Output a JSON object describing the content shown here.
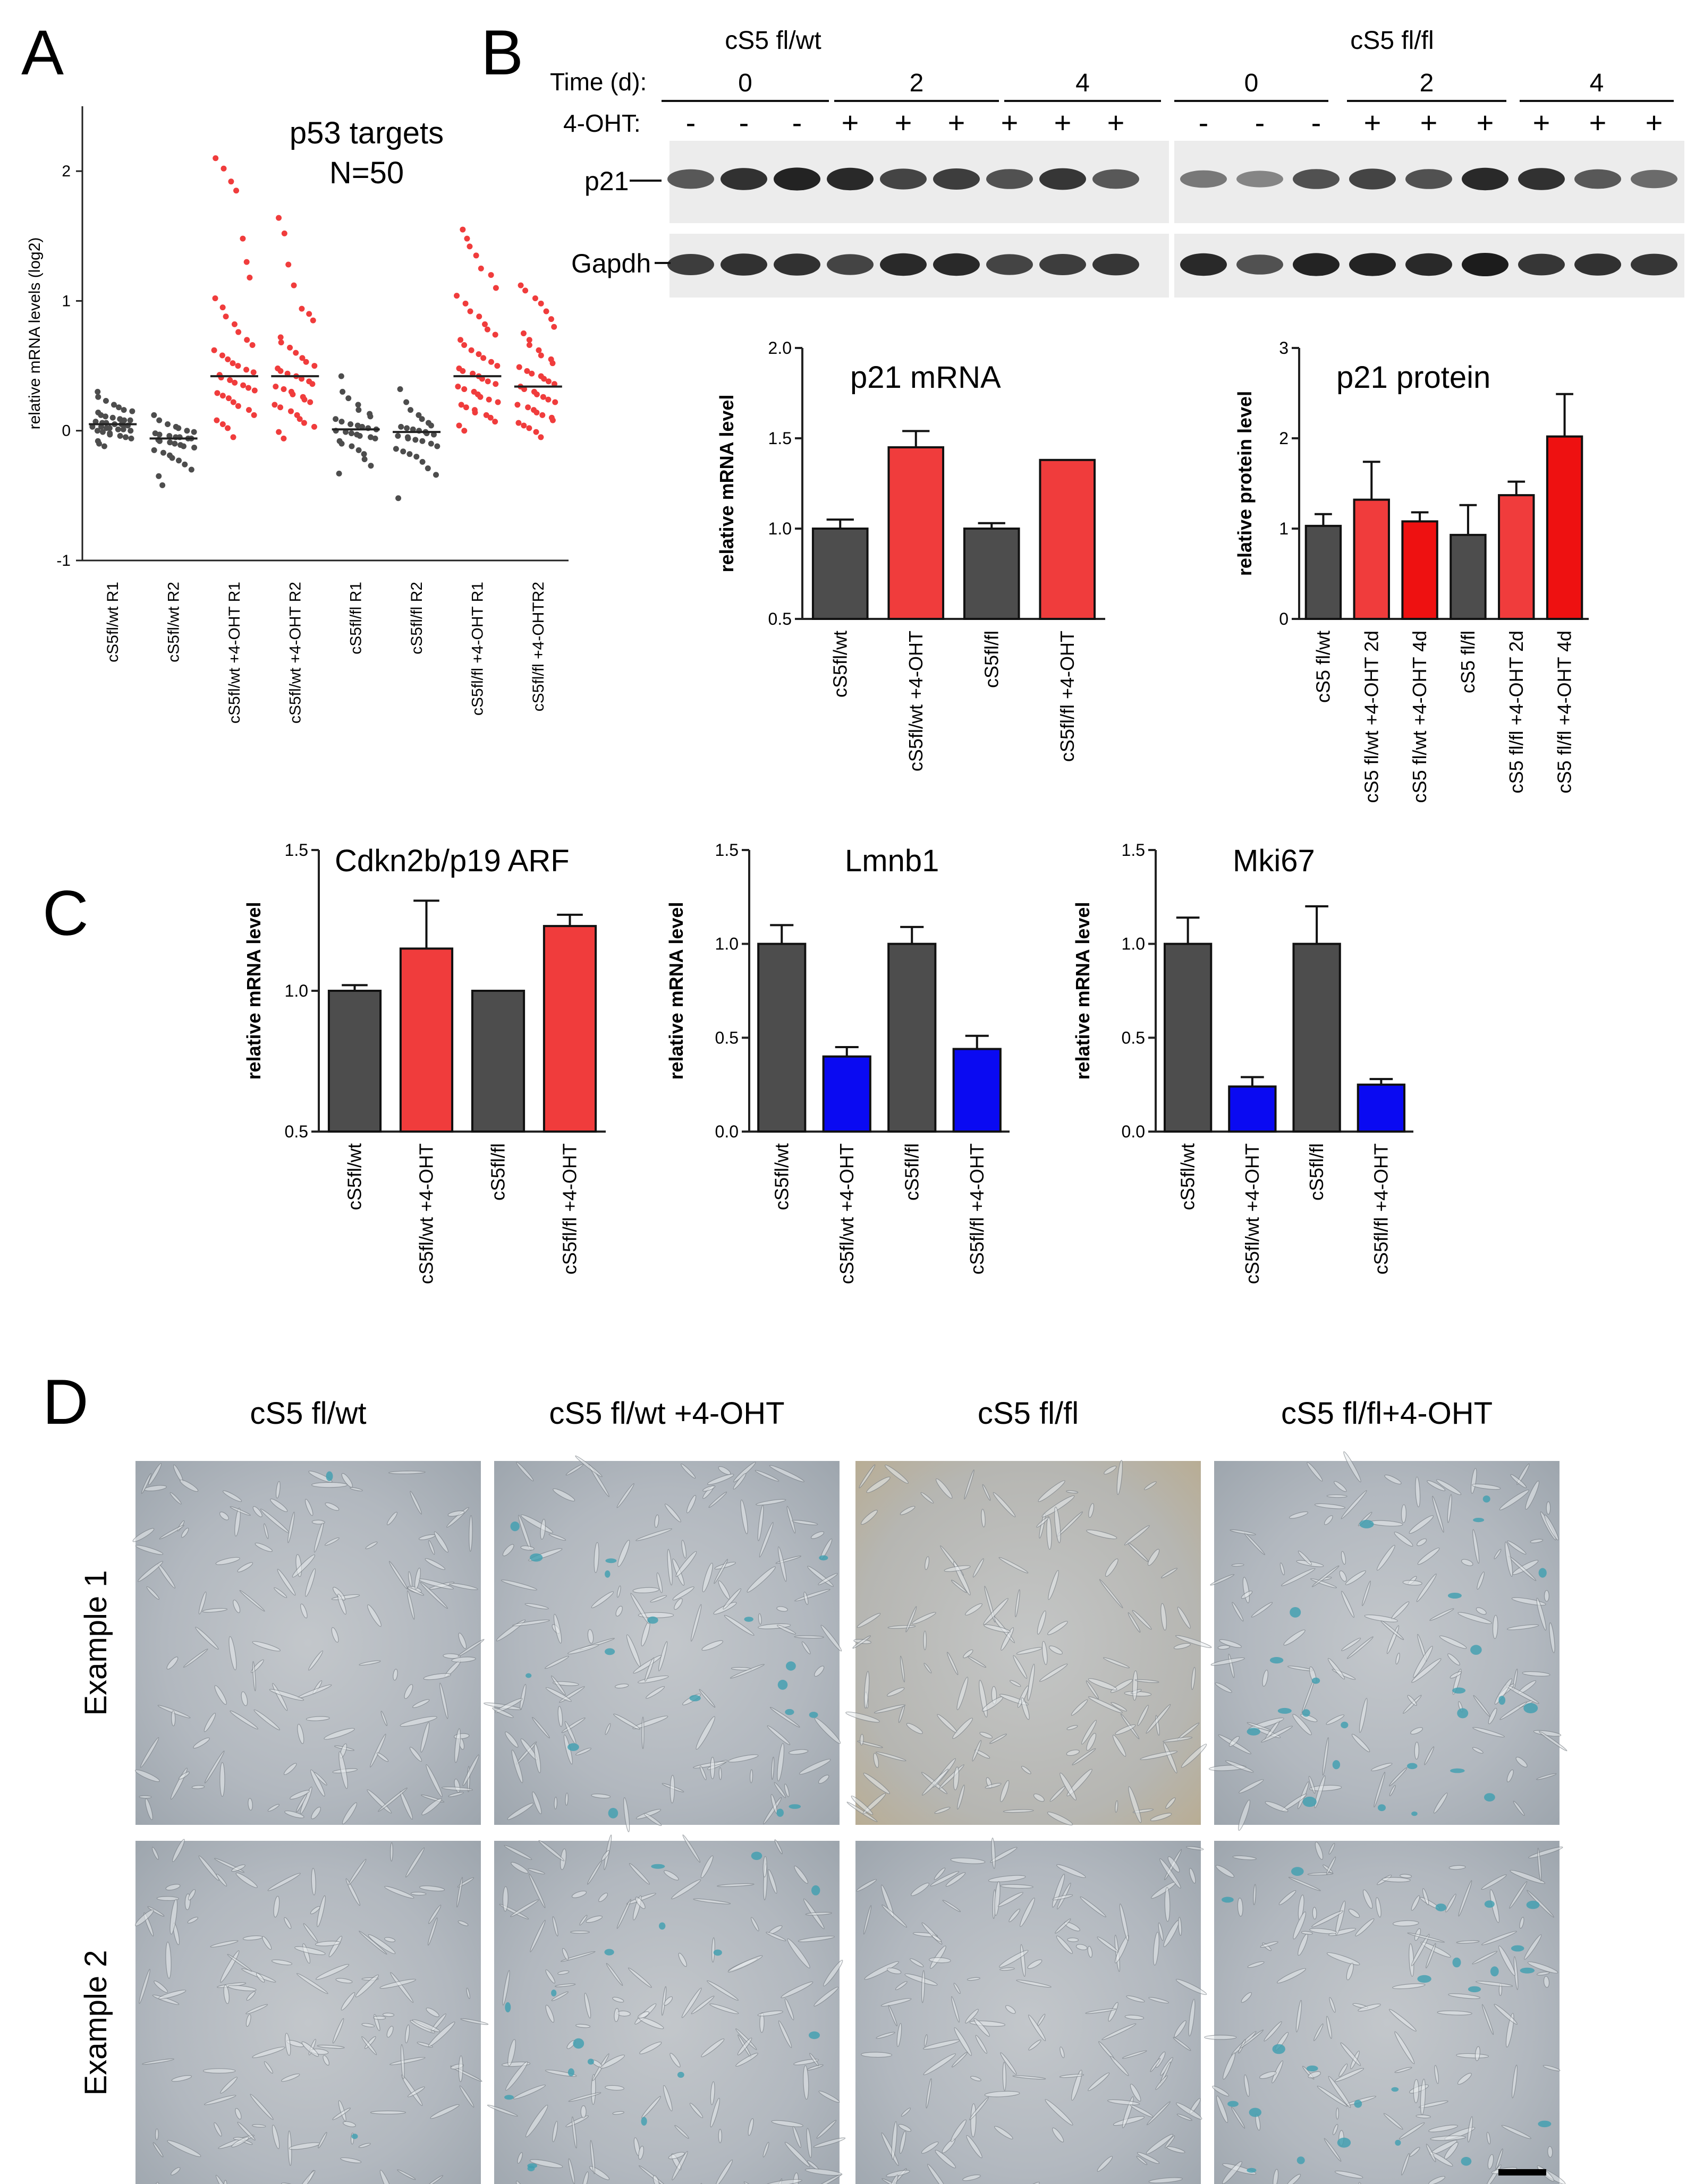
{
  "panels": {
    "A": {
      "letter": "A"
    },
    "B": {
      "letter": "B"
    },
    "C": {
      "letter": "C"
    },
    "D": {
      "letter": "D"
    }
  },
  "colors": {
    "gray": "#4d4d4d",
    "red": "#f03c3c",
    "red_strong": "#ee1111",
    "blue": "#0a0af2",
    "stain_blue": "#3f9fb0"
  },
  "western_blot": {
    "group_left": "cS5 fl/wt",
    "group_right": "cS5 fl/fl",
    "time_label": "Time (d):",
    "treat_label": "4-OHT:",
    "time_points": [
      "0",
      "2",
      "4"
    ],
    "lanes_left": [
      "-",
      "-",
      "-",
      "+",
      "+",
      "+",
      "+",
      "+",
      "+"
    ],
    "lanes_right": [
      "-",
      "-",
      "-",
      "+",
      "+",
      "+",
      "+",
      "+",
      "+"
    ],
    "bands": [
      "p21",
      "Gapdh"
    ]
  },
  "chart_data": [
    {
      "id": "A",
      "type": "scatter",
      "title": "p53 targets",
      "subtitle": "N=50",
      "ylabel": "relative mRNA levels (log2)",
      "ylim": [
        -1,
        2.5
      ],
      "yticks": [
        "-1",
        "0",
        "1",
        "2"
      ],
      "categories": [
        "cS5fl/wt R1",
        "cS5fl/wt R2",
        "cS5fl/wt +4-OHT R1",
        "cS5fl/wt +4-OHT R2",
        "cS5fl/fl R1",
        "cS5fl/fl R2",
        "cS5fl/fl +4-OHT R1",
        "cS5fl/fl +4-OHTR2"
      ],
      "medians": [
        0.05,
        -0.06,
        0.42,
        0.42,
        0.01,
        -0.01,
        0.42,
        0.34
      ],
      "colors": [
        "#4d4d4d",
        "#4d4d4d",
        "#f03c3c",
        "#f03c3c",
        "#4d4d4d",
        "#4d4d4d",
        "#f03c3c",
        "#f03c3c"
      ],
      "series": [
        {
          "values": [
            0.3,
            0.26,
            0.23,
            0.2,
            0.18,
            0.16,
            0.15,
            0.14,
            0.12,
            0.11,
            0.1,
            0.09,
            0.08,
            0.08,
            0.07,
            0.06,
            0.06,
            0.05,
            0.05,
            0.04,
            0.04,
            0.03,
            0.03,
            0.02,
            0.02,
            0.01,
            0.01,
            0.0,
            0.0,
            -0.01,
            -0.02,
            -0.03,
            -0.04,
            -0.05,
            -0.06,
            -0.08,
            -0.1,
            -0.12
          ]
        },
        {
          "values": [
            0.12,
            0.08,
            0.05,
            0.03,
            0.02,
            0.0,
            -0.01,
            -0.02,
            -0.03,
            -0.04,
            -0.05,
            -0.05,
            -0.06,
            -0.06,
            -0.07,
            -0.08,
            -0.09,
            -0.1,
            -0.11,
            -0.12,
            -0.13,
            -0.15,
            -0.17,
            -0.19,
            -0.21,
            -0.23,
            -0.26,
            -0.3,
            -0.35,
            -0.42
          ]
        },
        {
          "values": [
            2.1,
            2.02,
            1.92,
            1.85,
            1.48,
            1.3,
            1.18,
            1.02,
            0.95,
            0.88,
            0.82,
            0.76,
            0.7,
            0.66,
            0.62,
            0.58,
            0.55,
            0.52,
            0.5,
            0.47,
            0.45,
            0.43,
            0.41,
            0.39,
            0.37,
            0.35,
            0.33,
            0.31,
            0.29,
            0.27,
            0.25,
            0.22,
            0.19,
            0.16,
            0.12,
            0.08,
            0.05,
            0.02,
            -0.05
          ]
        },
        {
          "values": [
            1.64,
            1.52,
            1.28,
            1.12,
            0.94,
            0.9,
            0.85,
            0.72,
            0.68,
            0.64,
            0.6,
            0.56,
            0.53,
            0.5,
            0.48,
            0.46,
            0.44,
            0.42,
            0.4,
            0.38,
            0.36,
            0.34,
            0.32,
            0.3,
            0.28,
            0.26,
            0.24,
            0.22,
            0.2,
            0.18,
            0.15,
            0.12,
            0.09,
            0.06,
            0.03,
            -0.01,
            -0.06
          ]
        },
        {
          "values": [
            0.42,
            0.3,
            0.25,
            0.2,
            0.16,
            0.13,
            0.11,
            0.09,
            0.07,
            0.05,
            0.04,
            0.03,
            0.02,
            0.01,
            0.0,
            -0.01,
            -0.02,
            -0.03,
            -0.04,
            -0.05,
            -0.06,
            -0.08,
            -0.1,
            -0.12,
            -0.15,
            -0.18,
            -0.22,
            -0.27,
            -0.33
          ]
        },
        {
          "values": [
            0.32,
            0.22,
            0.16,
            0.12,
            0.09,
            0.06,
            0.04,
            0.03,
            0.02,
            0.01,
            0.0,
            -0.01,
            -0.02,
            -0.03,
            -0.04,
            -0.05,
            -0.06,
            -0.07,
            -0.08,
            -0.1,
            -0.12,
            -0.14,
            -0.16,
            -0.18,
            -0.2,
            -0.24,
            -0.29,
            -0.34,
            -0.52
          ]
        },
        {
          "values": [
            1.55,
            1.48,
            1.42,
            1.35,
            1.25,
            1.2,
            1.1,
            1.04,
            0.98,
            0.92,
            0.88,
            0.82,
            0.78,
            0.74,
            0.7,
            0.66,
            0.62,
            0.59,
            0.56,
            0.53,
            0.5,
            0.48,
            0.46,
            0.44,
            0.42,
            0.4,
            0.38,
            0.36,
            0.34,
            0.32,
            0.3,
            0.28,
            0.26,
            0.24,
            0.22,
            0.2,
            0.18,
            0.16,
            0.14,
            0.12,
            0.1,
            0.07,
            0.04,
            0.0
          ]
        },
        {
          "values": [
            1.12,
            1.08,
            1.02,
            0.98,
            0.92,
            0.86,
            0.8,
            0.75,
            0.7,
            0.66,
            0.62,
            0.58,
            0.55,
            0.52,
            0.49,
            0.46,
            0.44,
            0.42,
            0.4,
            0.38,
            0.36,
            0.34,
            0.32,
            0.3,
            0.28,
            0.26,
            0.24,
            0.22,
            0.2,
            0.18,
            0.16,
            0.14,
            0.12,
            0.1,
            0.08,
            0.06,
            0.04,
            0.02,
            -0.01,
            -0.05
          ]
        }
      ]
    },
    {
      "id": "B-mrna",
      "type": "bar",
      "title": "p21 mRNA",
      "ylabel": "relative mRNA level",
      "ylim": [
        0.5,
        2.0
      ],
      "yticks": [
        "0.5",
        "1.0",
        "1.5",
        "2.0"
      ],
      "categories": [
        "cS5fl/wt",
        "cS5fl/wt +4-OHT",
        "cS5fl/fl",
        "cS5fl/fl +4-OHT"
      ],
      "values": [
        1.0,
        1.45,
        1.0,
        1.38
      ],
      "errors": [
        0.05,
        0.09,
        0.03,
        0.0
      ],
      "colors": [
        "#4d4d4d",
        "#f03c3c",
        "#4d4d4d",
        "#f03c3c"
      ]
    },
    {
      "id": "B-protein",
      "type": "bar",
      "title": "p21 protein",
      "ylabel": "relative protein level",
      "ylim": [
        0,
        3
      ],
      "yticks": [
        "0",
        "1",
        "2",
        "3"
      ],
      "categories": [
        "cS5 fl/wt",
        "cS5 fl/wt +4-OHT 2d",
        "cS5 fl/wt +4-OHT 4d",
        "cS5 fl/fl",
        "cS5 fl/fl +4-OHT 2d",
        "cS5 fl/fl +4-OHT 4d"
      ],
      "values": [
        1.03,
        1.32,
        1.08,
        0.93,
        1.37,
        2.02
      ],
      "errors": [
        0.13,
        0.42,
        0.1,
        0.33,
        0.15,
        0.47
      ],
      "colors": [
        "#4d4d4d",
        "#f03c3c",
        "#ee1111",
        "#4d4d4d",
        "#f03c3c",
        "#ee1111"
      ]
    },
    {
      "id": "C-cdkn",
      "type": "bar",
      "title": "Cdkn2b/p19 ARF",
      "ylabel": "relative mRNA level",
      "ylim": [
        0.5,
        1.5
      ],
      "yticks": [
        "0.5",
        "1.0",
        "1.5"
      ],
      "categories": [
        "cS5fl/wt",
        "cS5fl/wt +4-OHT",
        "cS5fl/fl",
        "cS5fl/fl +4-OHT"
      ],
      "values": [
        1.0,
        1.15,
        1.0,
        1.23
      ],
      "errors": [
        0.02,
        0.17,
        0.0,
        0.04
      ],
      "colors": [
        "#4d4d4d",
        "#f03c3c",
        "#4d4d4d",
        "#f03c3c"
      ]
    },
    {
      "id": "C-lmnb1",
      "type": "bar",
      "title": "Lmnb1",
      "ylabel": "relative mRNA level",
      "ylim": [
        0.0,
        1.5
      ],
      "yticks": [
        "0.0",
        "0.5",
        "1.0",
        "1.5"
      ],
      "categories": [
        "cS5fl/wt",
        "cS5fl/wt +4-OHT",
        "cS5fl/fl",
        "cS5fl/fl +4-OHT"
      ],
      "values": [
        1.0,
        0.4,
        1.0,
        0.44
      ],
      "errors": [
        0.1,
        0.05,
        0.09,
        0.07
      ],
      "colors": [
        "#4d4d4d",
        "#0a0af2",
        "#4d4d4d",
        "#0a0af2"
      ]
    },
    {
      "id": "C-mki67",
      "type": "bar",
      "title": "Mki67",
      "ylabel": "relative mRNA level",
      "ylim": [
        0.0,
        1.5
      ],
      "yticks": [
        "0.0",
        "0.5",
        "1.0",
        "1.5"
      ],
      "categories": [
        "cS5fl/wt",
        "cS5fl/wt +4-OHT",
        "cS5fl/fl",
        "cS5fl/fl +4-OHT"
      ],
      "values": [
        1.0,
        0.24,
        1.0,
        0.25
      ],
      "errors": [
        0.14,
        0.05,
        0.2,
        0.03
      ],
      "colors": [
        "#4d4d4d",
        "#0a0af2",
        "#4d4d4d",
        "#0a0af2"
      ]
    }
  ],
  "micrographs": {
    "columns": [
      "cS5 fl/wt",
      "cS5 fl/wt +4-OHT",
      "cS5 fl/fl",
      "cS5 fl/fl+4-OHT"
    ],
    "rows": [
      "Example 1",
      "Example 2"
    ],
    "stain_level": [
      0.02,
      0.45,
      0.0,
      0.6
    ]
  }
}
